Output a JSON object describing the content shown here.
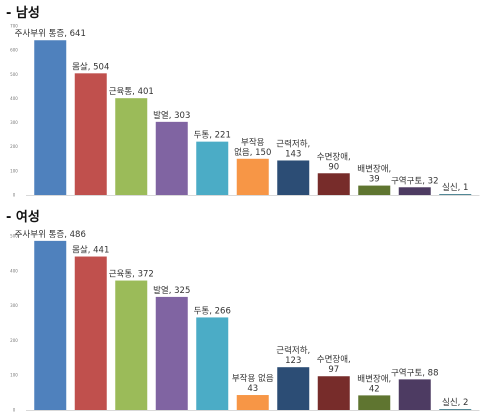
{
  "chart_data": [
    {
      "type": "bar",
      "title": "- 남성",
      "categories": [
        "주사부위 통증",
        "몸살",
        "근육통",
        "발열",
        "두통",
        "부작용 없음",
        "근력저하",
        "수면장애",
        "배변장애",
        "구역구토",
        "실신"
      ],
      "values": [
        641,
        504,
        401,
        303,
        221,
        150,
        143,
        90,
        39,
        32,
        1
      ],
      "data_labels": [
        [
          "주사부위 통증, 641"
        ],
        [
          "몸살, 504"
        ],
        [
          "근육통, 401"
        ],
        [
          "발열, 303"
        ],
        [
          "두통, 221"
        ],
        [
          "부작용",
          "없음, 150"
        ],
        [
          "근력저하,",
          "143"
        ],
        [
          "수면장애,",
          "90"
        ],
        [
          "배변장애,",
          "39"
        ],
        [
          "구역구토, 32"
        ],
        [
          "실신, 1"
        ]
      ],
      "ylim": [
        0,
        700
      ],
      "yticks": [
        "0",
        "100",
        "200",
        "300",
        "400",
        "500",
        "600",
        "700"
      ],
      "grid": false,
      "legend": "none",
      "colors": [
        "#4F81BD",
        "#C0504D",
        "#9BBB59",
        "#8064A2",
        "#4BACC6",
        "#F79646",
        "#2C4D75",
        "#772C2A",
        "#5F7530",
        "#4D3B62",
        "#276A7C"
      ]
    },
    {
      "type": "bar",
      "title": "- 여성",
      "categories": [
        "주사부위 통증",
        "몸살",
        "근육통",
        "발열",
        "두통",
        "부작용 없음",
        "근력저하",
        "수면장애",
        "배변장애",
        "구역구토",
        "실신"
      ],
      "values": [
        486,
        441,
        372,
        325,
        266,
        43,
        123,
        97,
        42,
        88,
        2
      ],
      "data_labels": [
        [
          "주사부위 통증, 486"
        ],
        [
          "몸살, 441"
        ],
        [
          "근육통, 372"
        ],
        [
          "발열, 325"
        ],
        [
          "두통, 266"
        ],
        [
          "부작용 없음",
          "43"
        ],
        [
          "근력저하,",
          "123"
        ],
        [
          "수면장애,",
          "97"
        ],
        [
          "배변장애,",
          "42"
        ],
        [
          "구역구토, 88"
        ],
        [
          "실신, 2"
        ]
      ],
      "ylim": [
        0,
        500
      ],
      "yticks": [
        "0",
        "100",
        "200",
        "300",
        "400",
        "500"
      ],
      "grid": false,
      "legend": "none",
      "colors": [
        "#4F81BD",
        "#C0504D",
        "#9BBB59",
        "#8064A2",
        "#4BACC6",
        "#F79646",
        "#2C4D75",
        "#772C2A",
        "#5F7530",
        "#4D3B62",
        "#276A7C"
      ]
    }
  ]
}
